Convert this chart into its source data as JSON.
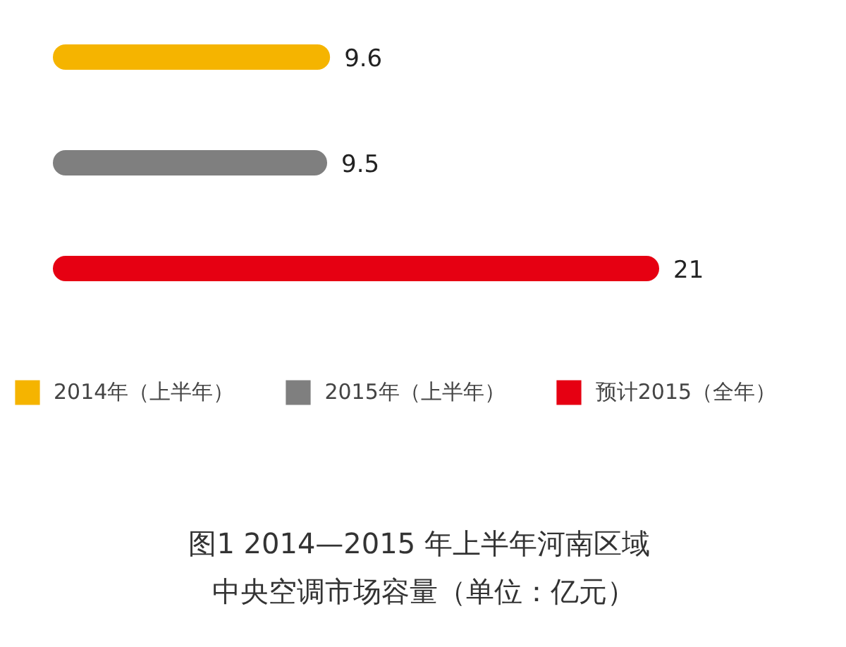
{
  "chart_data": {
    "type": "bar",
    "orientation": "horizontal",
    "stacked": true,
    "title": "图1  2014—2015 年上半年河南区域中央空调市场容量（单位：亿元）",
    "categories": [
      null,
      null,
      null
    ],
    "series": [
      {
        "name": "2014年（上半年）",
        "color": "#f5b400",
        "values": [
          9.6,
          null,
          null
        ]
      },
      {
        "name": "2015年（上半年）",
        "color": "#7f7f7f",
        "values": [
          null,
          9.5,
          null
        ]
      },
      {
        "name": "预计2015（全年）",
        "color": "#e60012",
        "values": [
          null,
          null,
          21
        ]
      }
    ],
    "data_labels": true,
    "legend": "bottom"
  }
}
